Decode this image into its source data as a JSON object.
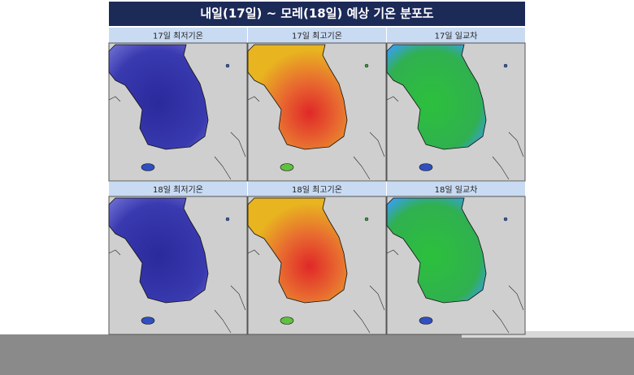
{
  "title": "내일(17일) ~ 모레(18일) 예상 기온 분포도",
  "panels": [
    {
      "label": "17일 최저기온"
    },
    {
      "label": "17일 최고기온"
    },
    {
      "label": "17일 일교차"
    },
    {
      "label": "18일 최저기온"
    },
    {
      "label": "18일 최고기온"
    },
    {
      "label": "18일 일교차"
    }
  ]
}
